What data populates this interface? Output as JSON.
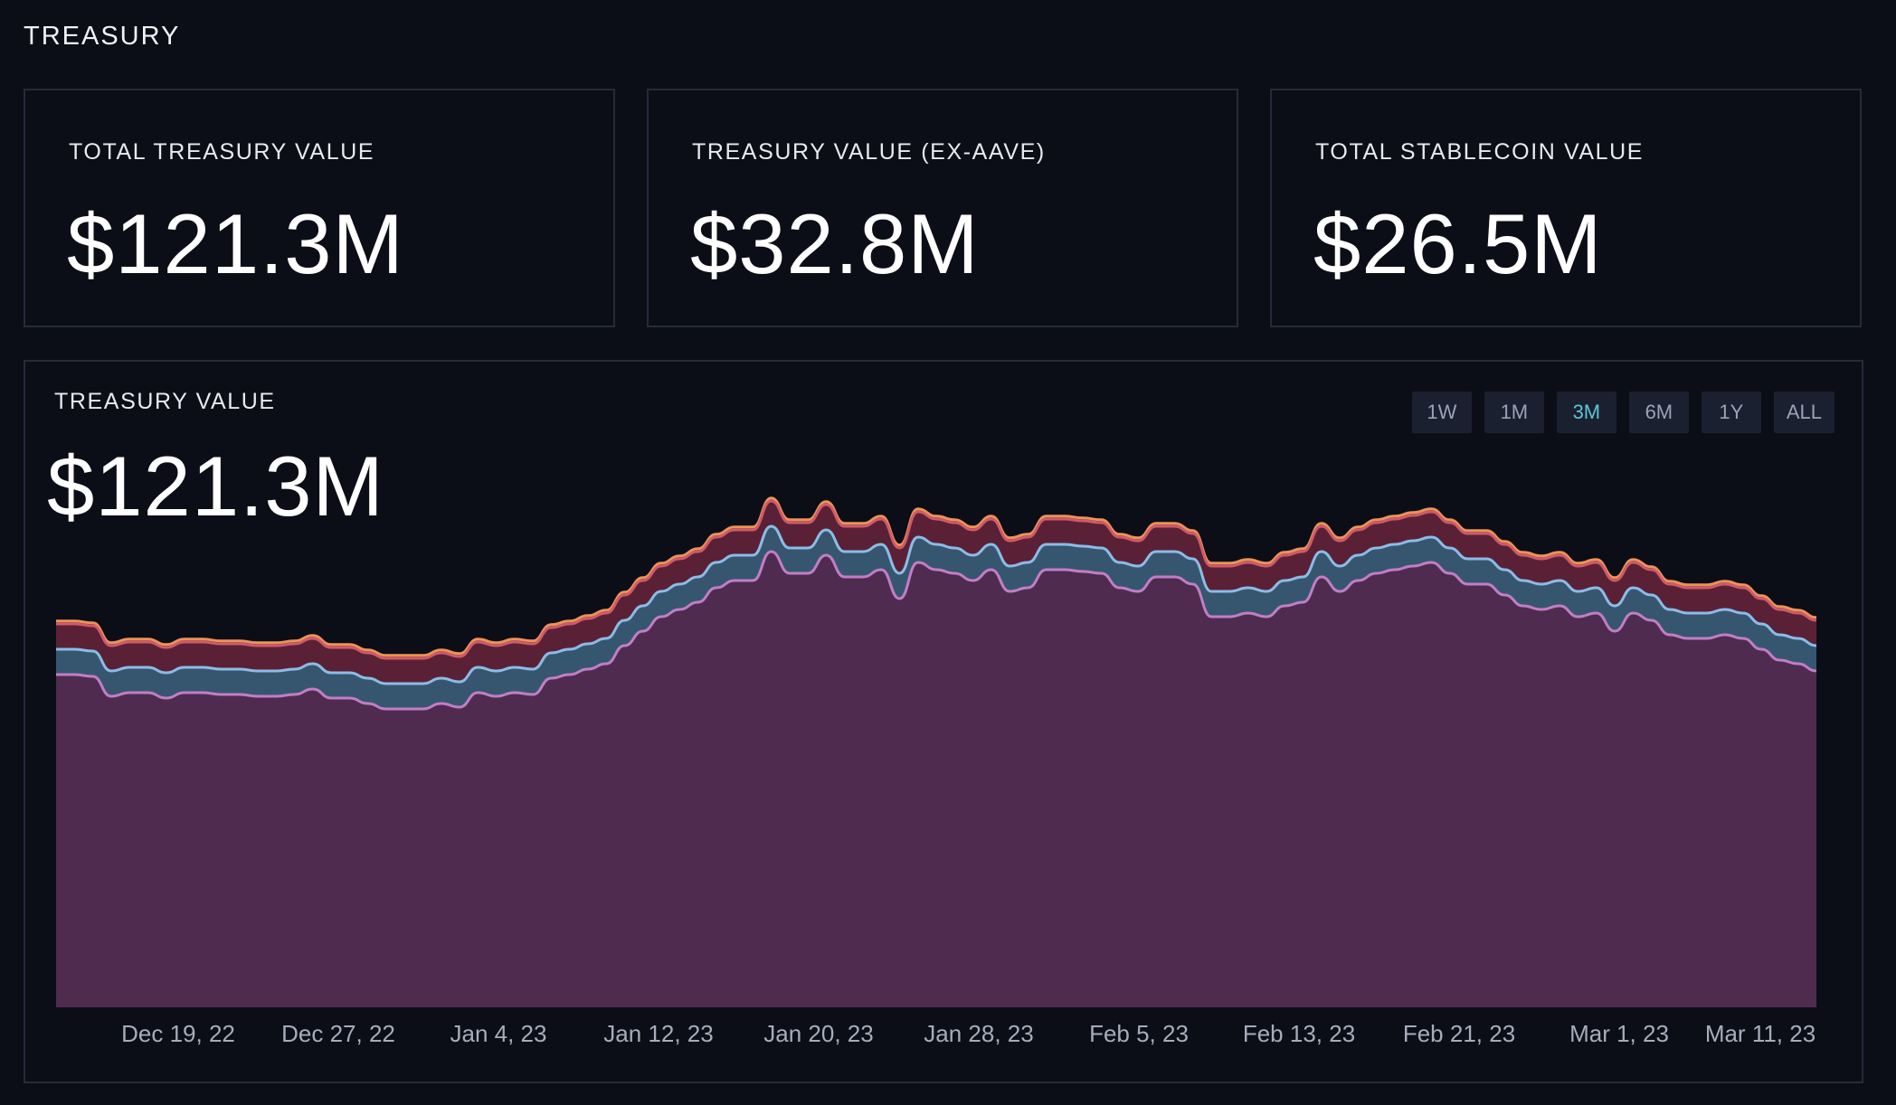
{
  "page_title": "TREASURY",
  "cards": [
    {
      "label": "TOTAL TREASURY VALUE",
      "value": "$121.3M"
    },
    {
      "label": "TREASURY VALUE (EX-AAVE)",
      "value": "$32.8M"
    },
    {
      "label": "TOTAL STABLECOIN VALUE",
      "value": "$26.5M"
    }
  ],
  "chart_panel": {
    "label": "TREASURY VALUE",
    "value": "$121.3M",
    "ranges": [
      "1W",
      "1M",
      "3M",
      "6M",
      "1Y",
      "ALL"
    ],
    "active_range": "3M"
  },
  "chart_data": {
    "type": "area",
    "stacked": true,
    "x_tick_labels": [
      "Dec 19, 22",
      "Dec 27, 22",
      "Jan 4, 23",
      "Jan 12, 23",
      "Jan 20, 23",
      "Jan 28, 23",
      "Feb 5, 23",
      "Feb 13, 23",
      "Feb 21, 23",
      "Mar 1, 23",
      "Mar 11, 23"
    ],
    "y_axis_visible": false,
    "grid": false,
    "series_colors": {
      "base": {
        "fill": "#4f2b50",
        "line": "#c27ec4"
      },
      "second": {
        "fill": "#365670",
        "line": "#8cbce6"
      },
      "third": {
        "fill": "#5a2136",
        "line": "#cf5a68"
      },
      "top": {
        "line": "#ec9357"
      }
    },
    "series": [
      {
        "values": [
          92,
          92,
          91.5,
          86,
          87,
          87,
          85.5,
          87,
          87,
          86.5,
          86.5,
          86,
          86,
          86.5,
          88,
          85.5,
          85.5,
          84,
          82.5,
          82.5,
          82.5,
          84,
          83,
          87,
          86,
          87,
          86.5,
          91,
          92,
          93.5,
          95,
          100,
          104,
          108,
          110,
          112,
          116,
          118,
          118,
          126,
          120,
          120,
          125,
          119,
          119,
          121,
          113,
          123,
          121,
          120,
          118,
          121,
          115,
          116,
          121,
          121,
          120.5,
          120,
          116,
          115,
          119,
          119,
          117,
          108,
          108,
          109,
          108,
          111,
          112,
          119,
          115,
          118,
          120,
          121,
          122,
          123,
          120,
          117,
          117,
          114,
          111,
          110,
          111,
          108,
          109,
          104,
          109,
          107,
          103,
          102,
          102,
          103,
          102,
          99,
          96,
          95,
          93
        ]
      },
      {
        "values": [
          7,
          7,
          7,
          7,
          7,
          7,
          7,
          7,
          7,
          7,
          7,
          7,
          7,
          7,
          7,
          7,
          7,
          7,
          7,
          7,
          7,
          7,
          7,
          7,
          7,
          7,
          7,
          7,
          7,
          7,
          7,
          7,
          7,
          7,
          7,
          7,
          7,
          7,
          7,
          7,
          7,
          7,
          7,
          7,
          7,
          7,
          7,
          7,
          7,
          7,
          7,
          7,
          7,
          7,
          7,
          7,
          7,
          7,
          7,
          7,
          7,
          7,
          7,
          7,
          7,
          7,
          7,
          7,
          7,
          7,
          7,
          7,
          7,
          7,
          7,
          7,
          7,
          7,
          7,
          7,
          7,
          7,
          7,
          7,
          7,
          7,
          7,
          7,
          7,
          7,
          7,
          7,
          7,
          7,
          7,
          7,
          7
        ]
      },
      {
        "values": [
          7,
          7,
          7,
          7,
          7,
          7,
          7,
          7,
          7,
          7,
          7,
          7,
          7,
          7,
          7,
          7,
          7,
          7,
          7,
          7,
          7,
          7,
          7,
          7,
          7,
          7,
          7,
          7,
          7,
          7,
          7,
          7,
          7,
          7,
          7,
          7,
          7,
          7,
          7,
          7,
          7,
          7,
          7,
          7,
          7,
          7,
          7,
          7,
          7,
          7,
          7,
          7,
          7,
          7,
          7,
          7,
          7,
          7,
          7,
          7,
          7,
          7,
          7,
          7,
          7,
          7,
          7,
          7,
          7,
          7,
          7,
          7,
          7,
          7,
          7,
          7,
          7,
          7,
          7,
          7,
          7,
          7,
          7,
          7,
          7,
          7,
          7,
          7,
          7,
          7,
          7,
          7,
          7,
          7,
          7,
          7,
          7
        ]
      },
      {
        "values": [
          0.8,
          0.8,
          0.8,
          0.8,
          0.8,
          0.8,
          0.8,
          0.8,
          0.8,
          0.8,
          0.8,
          0.8,
          0.8,
          0.8,
          0.8,
          0.8,
          0.8,
          0.8,
          0.8,
          0.8,
          0.8,
          0.8,
          0.8,
          0.8,
          0.8,
          0.8,
          0.8,
          0.8,
          0.8,
          0.8,
          0.8,
          0.8,
          0.8,
          0.8,
          0.8,
          0.8,
          0.8,
          0.8,
          0.8,
          0.8,
          0.8,
          0.8,
          0.8,
          0.8,
          0.8,
          0.8,
          0.8,
          0.8,
          0.8,
          0.8,
          0.8,
          0.8,
          0.8,
          0.8,
          0.8,
          0.8,
          0.8,
          0.8,
          0.8,
          0.8,
          0.8,
          0.8,
          0.8,
          0.8,
          0.8,
          0.8,
          0.8,
          0.8,
          0.8,
          0.8,
          0.8,
          0.8,
          0.8,
          0.8,
          0.8,
          0.8,
          0.8,
          0.8,
          0.8,
          0.8,
          0.8,
          0.8,
          0.8,
          0.8,
          0.8,
          0.8,
          0.8,
          0.8,
          0.8,
          0.8,
          0.8,
          0.8,
          0.8,
          0.8,
          0.8,
          0.8,
          0.8
        ]
      }
    ],
    "ylim": [
      0,
      150
    ]
  }
}
